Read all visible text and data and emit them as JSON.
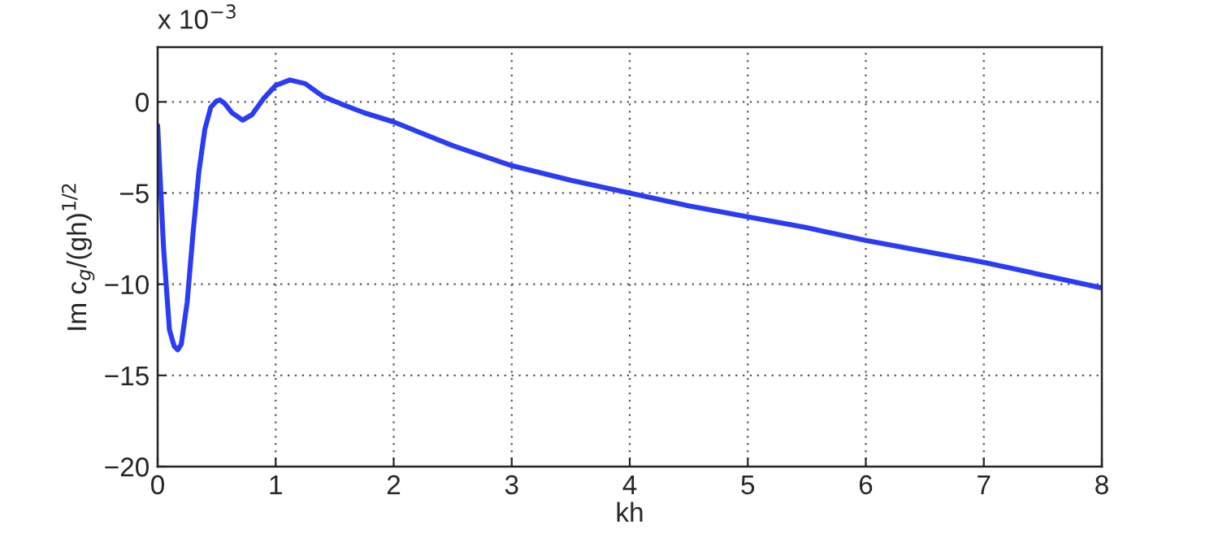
{
  "chart_data": {
    "type": "line",
    "xlabel": "kh",
    "ylabel": "Im c$_{g}$/(gh)$^{1/2}$",
    "annotations": [
      "x 10$^{−3}$"
    ],
    "series": [
      {
        "color": "#2a3cf5",
        "x": [
          0,
          0.02,
          0.05,
          0.1,
          0.14,
          0.17,
          0.2,
          0.25,
          0.3,
          0.35,
          0.4,
          0.45,
          0.5,
          0.53,
          0.57,
          0.63,
          0.72,
          0.8,
          0.9,
          1.0,
          1.12,
          1.25,
          1.4,
          1.55,
          1.75,
          2,
          2.5,
          3,
          3.5,
          4,
          4.5,
          5,
          5.5,
          6,
          6.5,
          7,
          7.5,
          8
        ],
        "values": [
          -1.3,
          -4,
          -8,
          -12.5,
          -13.4,
          -13.6,
          -13.3,
          -11,
          -7.2,
          -3.8,
          -1.5,
          -0.3,
          0.05,
          0.1,
          -0.1,
          -0.6,
          -1.0,
          -0.7,
          0.2,
          0.9,
          1.2,
          1.0,
          0.3,
          -0.1,
          -0.6,
          -1.1,
          -2.4,
          -3.5,
          -4.3,
          -5.0,
          -5.7,
          -6.3,
          -6.9,
          -7.6,
          -8.2,
          -8.8,
          -9.5,
          -10.2
        ]
      }
    ],
    "xlim": [
      0,
      8
    ],
    "ylim": [
      -20,
      3
    ],
    "xticks": [
      0,
      1,
      2,
      3,
      4,
      5,
      6,
      7,
      8
    ],
    "yticks": [
      {
        "value": -20,
        "label": "−20"
      },
      {
        "value": -15,
        "label": "−15"
      },
      {
        "value": -10,
        "label": "−10"
      },
      {
        "value": -5,
        "label": "−5"
      },
      0
    ],
    "grid": true
  }
}
